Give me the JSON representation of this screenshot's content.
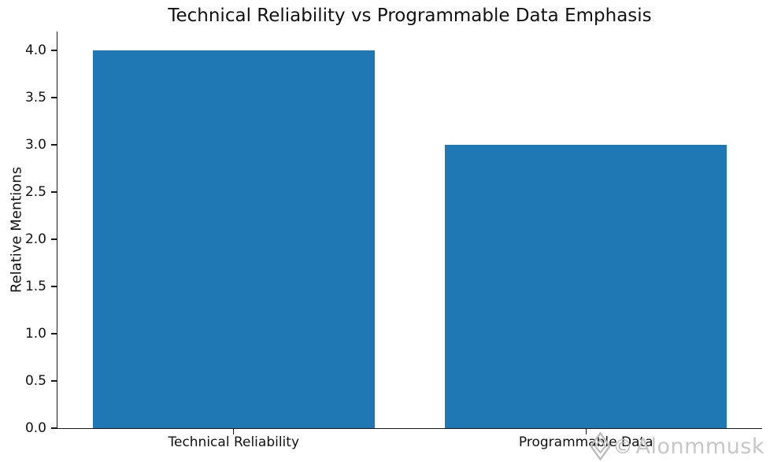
{
  "figure": {
    "background": "#ffffff"
  },
  "watermark": {
    "diamond_icon": "diamond-outline",
    "copyright_symbol": "©",
    "handle": "Alonmmusk",
    "icon_color": "#b9b9b9",
    "text_color": "#c7c7c7"
  },
  "chart_data": {
    "type": "bar",
    "title": "Technical Reliability vs Programmable Data Emphasis",
    "categories": [
      "Technical Reliability",
      "Programmable Data"
    ],
    "values": [
      4.0,
      3.0
    ],
    "xlabel": "",
    "ylabel": "Relative Mentions",
    "ylim": [
      0,
      4.2
    ],
    "yticks": [
      0.0,
      0.5,
      1.0,
      1.5,
      2.0,
      2.5,
      3.0,
      3.5,
      4.0
    ],
    "ytick_decimals": 1,
    "bar_color": "#1f77b4",
    "bar_width_fraction": 0.8,
    "axis_color": "#1a1a1a",
    "grid": false,
    "legend": null,
    "spines": [
      "left",
      "bottom"
    ]
  }
}
